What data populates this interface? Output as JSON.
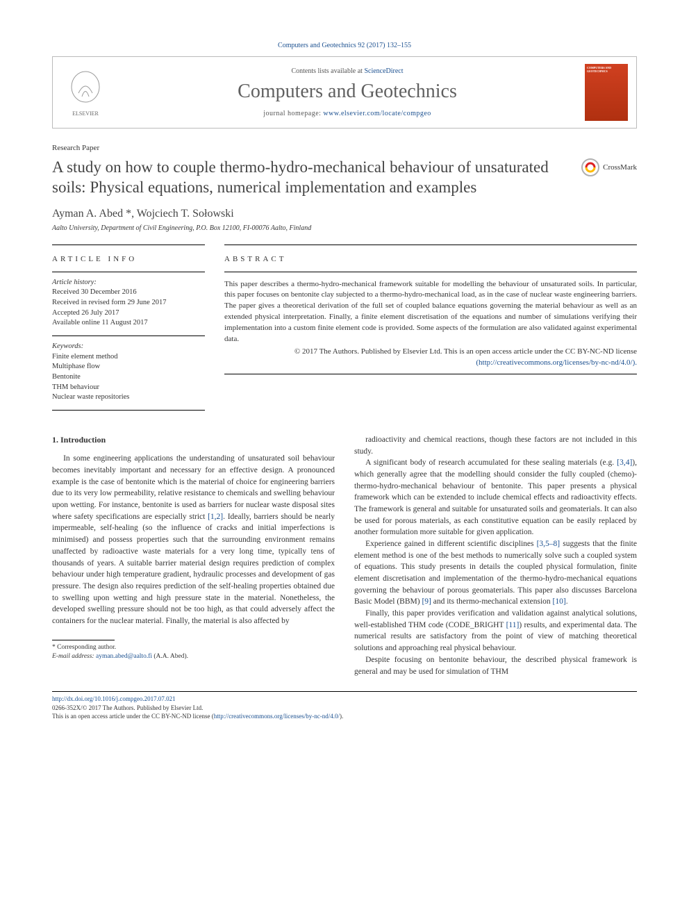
{
  "journal_ref": "Computers and Geotechnics 92 (2017) 132–155",
  "header": {
    "contents_prefix": "Contents lists available at ",
    "contents_link": "ScienceDirect",
    "journal_name": "Computers and Geotechnics",
    "homepage_prefix": "journal homepage: ",
    "homepage_url": "www.elsevier.com/locate/compgeo",
    "publisher": "ELSEVIER",
    "cover_label": "COMPUTERS AND GEOTECHNICS"
  },
  "paper_type": "Research Paper",
  "title": "A study on how to couple thermo-hydro-mechanical behaviour of unsaturated soils: Physical equations, numerical implementation and examples",
  "crossmark_label": "CrossMark",
  "authors": "Ayman A. Abed *, Wojciech T. Sołowski",
  "affiliation": "Aalto University, Department of Civil Engineering, P.O. Box 12100, FI-00076 Aalto, Finland",
  "article_info": {
    "heading": "ARTICLE INFO",
    "history_label": "Article history:",
    "history": [
      "Received 30 December 2016",
      "Received in revised form 29 June 2017",
      "Accepted 26 July 2017",
      "Available online 11 August 2017"
    ],
    "keywords_label": "Keywords:",
    "keywords": [
      "Finite element method",
      "Multiphase flow",
      "Bentonite",
      "THM behaviour",
      "Nuclear waste repositories"
    ]
  },
  "abstract": {
    "heading": "ABSTRACT",
    "text": "This paper describes a thermo-hydro-mechanical framework suitable for modelling the behaviour of unsaturated soils. In particular, this paper focuses on bentonite clay subjected to a thermo-hydro-mechanical load, as in the case of nuclear waste engineering barriers. The paper gives a theoretical derivation of the full set of coupled balance equations governing the material behaviour as well as an extended physical interpretation. Finally, a finite element discretisation of the equations and number of simulations verifying their implementation into a custom finite element code is provided. Some aspects of the formulation are also validated against experimental data.",
    "copyright_line1": "© 2017 The Authors. Published by Elsevier Ltd. This is an open access article under the CC BY-NC-ND license",
    "copyright_link": "(http://creativecommons.org/licenses/by-nc-nd/4.0/)."
  },
  "body": {
    "section_heading": "1. Introduction",
    "left": [
      "In some engineering applications the understanding of unsaturated soil behaviour becomes inevitably important and necessary for an effective design. A pronounced example is the case of bentonite which is the material of choice for engineering barriers due to its very low permeability, relative resistance to chemicals and swelling behaviour upon wetting. For instance, bentonite is used as barriers for nuclear waste disposal sites where safety specifications are especially strict [1,2]. Ideally, barriers should be nearly impermeable, self-healing (so the influence of cracks and initial imperfections is minimised) and possess properties such that the surrounding environment remains unaffected by radioactive waste materials for a very long time, typically tens of thousands of years. A suitable barrier material design requires prediction of complex behaviour under high temperature gradient, hydraulic processes and development of gas pressure. The design also requires prediction of the self-healing properties obtained due to swelling upon wetting and high pressure state in the material. Nonetheless, the developed swelling pressure should not be too high, as that could adversely affect the containers for the nuclear material. Finally, the material is also affected by"
    ],
    "right": [
      "radioactivity and chemical reactions, though these factors are not included in this study.",
      "A significant body of research accumulated for these sealing materials (e.g. [3,4]), which generally agree that the modelling should consider the fully coupled (chemo)-thermo-hydro-mechanical behaviour of bentonite. This paper presents a physical framework which can be extended to include chemical effects and radioactivity effects. The framework is general and suitable for unsaturated soils and geomaterials. It can also be used for porous materials, as each constitutive equation can be easily replaced by another formulation more suitable for given application.",
      "Experience gained in different scientific disciplines [3,5–8] suggests that the finite element method is one of the best methods to numerically solve such a coupled system of equations. This study presents in details the coupled physical formulation, finite element discretisation and implementation of the thermo-hydro-mechanical equations governing the behaviour of porous geomaterials. This paper also discusses Barcelona Basic Model (BBM) [9] and its thermo-mechanical extension [10].",
      "Finally, this paper provides verification and validation against analytical solutions, well-established THM code (CODE_BRIGHT [11]) results, and experimental data. The numerical results are satisfactory from the point of view of matching theoretical solutions and approaching real physical behaviour.",
      "Despite focusing on bentonite behaviour, the described physical framework is general and may be used for simulation of THM"
    ]
  },
  "footnote": {
    "corresponding": "* Corresponding author.",
    "email_label": "E-mail address: ",
    "email": "ayman.abed@aalto.fi",
    "email_suffix": " (A.A. Abed)."
  },
  "footer": {
    "doi": "http://dx.doi.org/10.1016/j.compgeo.2017.07.021",
    "issn_line": "0266-352X/© 2017 The Authors. Published by Elsevier Ltd.",
    "license_line": "This is an open access article under the CC BY-NC-ND license (",
    "license_url": "http://creativecommons.org/licenses/by-nc-nd/4.0/",
    "license_close": ")."
  },
  "colors": {
    "link": "#1a4f8f",
    "text": "#333333",
    "title": "#444444",
    "cover": "#c23b18"
  }
}
